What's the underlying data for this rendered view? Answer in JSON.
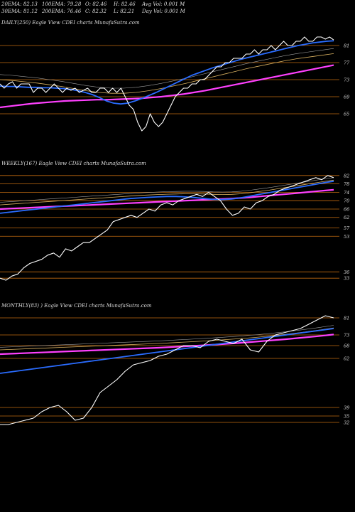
{
  "header": {
    "row1": [
      "20EMA: 82.13",
      "100EMA: 79.28",
      "O: 82.46",
      "H: 82.46",
      "Avg Vol: 0.001 M"
    ],
    "row2": [
      "30EMA: 81.12",
      "200EMA: 76.46",
      "C: 82.32",
      "L: 82.21",
      "Day Vol: 0.001 M"
    ]
  },
  "colors": {
    "background": "#000000",
    "gridline": "#c06a10",
    "price": "#ffffff",
    "ema_short": "#2a6cff",
    "ema_long": "#ff40ff",
    "ema_mid": "#d8b060"
  },
  "chart_data": [
    {
      "type": "line",
      "title": "DAILY(250) Eagle  View  CDEI charts MunafaSutra.com",
      "ylim": [
        60,
        85
      ],
      "y_ticks": [
        81,
        77,
        73,
        69,
        65
      ],
      "series": {
        "price": [
          72,
          71,
          72,
          72.5,
          71,
          72,
          72,
          72,
          70,
          71,
          71,
          70,
          71,
          72,
          71,
          70,
          71,
          70.5,
          71,
          70,
          70.5,
          71,
          70,
          70,
          71,
          71,
          70,
          71,
          70,
          71,
          69,
          67,
          66,
          63,
          61,
          62,
          65,
          63,
          62,
          63,
          65,
          67,
          69,
          70,
          71,
          71,
          72,
          72,
          73,
          73,
          74,
          75,
          76,
          76,
          77,
          77,
          78,
          78,
          78,
          79,
          79,
          80,
          79,
          80,
          80,
          81,
          80,
          81,
          82,
          81,
          81,
          82,
          82,
          83,
          82,
          82,
          83,
          83,
          82.5,
          83,
          82.3
        ],
        "ema_short": [
          71.5,
          71.4,
          71.4,
          71.3,
          71.2,
          71.2,
          71.1,
          71.1,
          71,
          70.9,
          70.7,
          70.4,
          70,
          69.5,
          68.8,
          68,
          67.5,
          67.3,
          67.5,
          68,
          68.6,
          69.3,
          70,
          70.8,
          71.6,
          72.4,
          73.2,
          74,
          74.6,
          75.2,
          75.8,
          76.3,
          76.8,
          77.3,
          77.8,
          78.2,
          78.6,
          79,
          79.4,
          79.8,
          80.2,
          80.6,
          81,
          81.3,
          81.6,
          81.8,
          82,
          82.1
        ],
        "ema_long": [
          66.5,
          66.8,
          67.1,
          67.4,
          67.6,
          67.8,
          68,
          68.1,
          68.2,
          68.3,
          68.3,
          68.4,
          68.5,
          68.6,
          68.8,
          69,
          69.3,
          69.6,
          70,
          70.4,
          70.9,
          71.4,
          71.9,
          72.4,
          72.9,
          73.4,
          73.9,
          74.4,
          74.9,
          75.4,
          75.9,
          76.4
        ],
        "ema_mid": [
          73,
          72.8,
          72.5,
          72.2,
          71.8,
          71.4,
          70.9,
          70.4,
          70,
          69.8,
          69.8,
          70,
          70.4,
          70.9,
          71.5,
          72.1,
          72.8,
          73.5,
          74.2,
          74.9,
          75.6,
          76.2,
          76.8,
          77.4,
          77.9,
          78.3,
          78.7,
          79.1
        ]
      }
    },
    {
      "type": "line",
      "title": "WEEKLY(167) Eagle  View  CDEI charts MunafaSutra.com",
      "ylim": [
        30,
        85
      ],
      "y_ticks": [
        82,
        78,
        74,
        70,
        66,
        62,
        57,
        53,
        36,
        33
      ],
      "series": {
        "price": [
          33,
          32,
          34,
          35,
          38,
          40,
          41,
          42,
          44,
          45,
          43,
          47,
          46,
          48,
          50,
          50,
          52,
          54,
          56,
          60,
          61,
          62,
          63,
          62,
          64,
          66,
          65,
          68,
          69,
          68,
          70,
          71,
          72,
          73,
          72,
          74,
          72,
          70,
          66,
          63,
          64,
          67,
          66,
          69,
          70,
          72,
          73,
          75,
          76,
          77,
          78,
          79,
          80,
          81,
          80,
          82,
          81
        ],
        "ema_short": [
          64,
          64.5,
          65,
          65.5,
          66,
          66.5,
          67,
          67.5,
          68,
          68.5,
          69,
          69.5,
          70,
          70.5,
          71,
          71.3,
          71.6,
          71.8,
          72,
          72,
          71.8,
          71.5,
          71,
          70.6,
          70.5,
          70.8,
          71.4,
          72.2,
          73,
          73.8,
          74.6,
          75.4,
          76.2,
          77,
          77.8,
          78.6,
          79.3
        ],
        "ema_long": [
          66,
          66.2,
          66.4,
          66.6,
          66.8,
          67,
          67.2,
          67.4,
          67.6,
          67.8,
          68,
          68.2,
          68.4,
          68.6,
          68.8,
          69,
          69.2,
          69.4,
          69.6,
          69.8,
          70,
          70.2,
          70.4,
          70.6,
          70.8,
          71,
          71.3,
          71.6,
          72,
          72.4,
          72.8,
          73.2,
          73.6,
          74,
          74.4,
          74.8,
          75.2
        ],
        "ema_mid": [
          68,
          68.3,
          68.6,
          68.9,
          69.2,
          69.5,
          69.8,
          70.1,
          70.4,
          70.7,
          71,
          71.3,
          71.6,
          71.9,
          72.2,
          72.5,
          72.7,
          72.9,
          73.1,
          73.2,
          73.3,
          73.3,
          73.2,
          73,
          72.9,
          73,
          73.3,
          73.8,
          74.4,
          75,
          75.7,
          76.4,
          77.1,
          77.8,
          78.5,
          79.2,
          79.8
        ]
      }
    },
    {
      "type": "line",
      "title": "MONTHLY(83)       ) Eagle  View  CDEI charts MunafaSutra.com",
      "ylim": [
        30,
        84
      ],
      "y_ticks": [
        81,
        73,
        68,
        62,
        39,
        35,
        32
      ],
      "series": {
        "price": [
          31,
          31,
          32,
          33,
          34,
          37,
          39,
          40,
          37,
          33,
          34,
          39,
          46,
          49,
          52,
          56,
          59,
          60,
          61,
          63,
          64,
          66,
          68,
          68,
          67,
          70,
          71,
          70,
          69,
          71,
          66,
          65,
          70,
          73,
          74,
          75,
          76,
          78,
          80,
          82,
          81
        ],
        "ema_short": [
          55,
          56,
          57,
          58,
          59,
          60,
          61,
          62,
          63,
          64,
          65,
          66,
          67,
          68,
          69,
          70,
          71,
          72,
          73,
          74,
          75,
          76
        ],
        "ema_long": [
          64,
          64.3,
          64.6,
          64.9,
          65.2,
          65.5,
          65.8,
          66.1,
          66.4,
          66.7,
          67,
          67.4,
          67.8,
          68.2,
          68.7,
          69.2,
          69.8,
          70.4,
          71,
          71.7,
          72.4,
          73.2
        ],
        "ema_mid": [
          66,
          66.3,
          66.6,
          66.9,
          67.2,
          67.5,
          67.8,
          68.1,
          68.4,
          68.7,
          69,
          69.4,
          69.8,
          70.2,
          70.7,
          71.2,
          71.8,
          72.5,
          73.3,
          74.2,
          75.2,
          76.3
        ]
      }
    }
  ]
}
